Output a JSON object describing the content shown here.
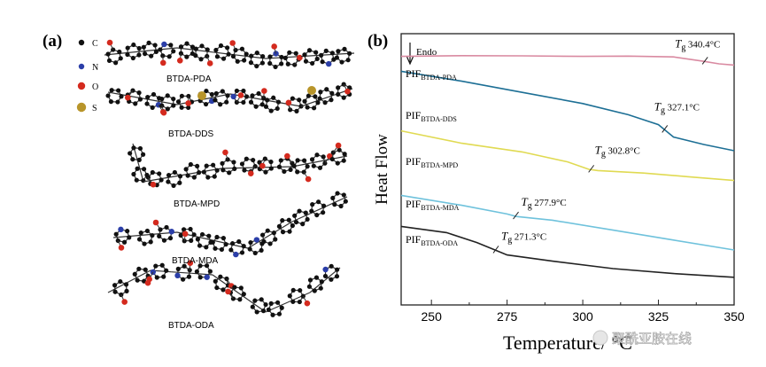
{
  "panel_a": {
    "label": "(a)",
    "legend": [
      {
        "symbol": "C",
        "color": "#111111"
      },
      {
        "symbol": "N",
        "color": "#2b3ea8"
      },
      {
        "symbol": "O",
        "color": "#d42a1e"
      },
      {
        "symbol": "S",
        "color": "#b8952a"
      }
    ],
    "molecules": [
      "BTDA-PDA",
      "BTDA-DDS",
      "BTDA-MPD",
      "BTDA-MDA",
      "BTDA-ODA"
    ]
  },
  "panel_b": {
    "label": "(b)",
    "endo_label": "Endo",
    "watermark": "聚酰亚胺在线"
  },
  "chart_data": {
    "type": "line",
    "title": "",
    "xlabel": "Temperature/ °C",
    "ylabel": "Heat Flow",
    "xlim": [
      240,
      350
    ],
    "xticks": [
      250,
      275,
      300,
      325,
      350
    ],
    "grid": false,
    "series": [
      {
        "name": "PDA",
        "label_main": "PIF",
        "label_sub": "BTDA-PDA",
        "color": "#d98aa1",
        "tg_label": "340.4°C",
        "x": [
          240,
          260,
          280,
          300,
          315,
          330,
          340,
          345,
          350
        ],
        "y": [
          4.55,
          4.58,
          4.57,
          4.55,
          4.56,
          4.53,
          4.35,
          4.25,
          4.2
        ]
      },
      {
        "name": "DDS",
        "label_main": "PIF",
        "label_sub": "BTDA-DDS",
        "color": "#1d6f95",
        "tg_label": "327.1°C",
        "x": [
          240,
          260,
          280,
          300,
          315,
          325,
          330,
          340,
          350
        ],
        "y": [
          3.95,
          3.55,
          3.1,
          2.65,
          2.2,
          1.8,
          1.3,
          1.0,
          0.75
        ]
      },
      {
        "name": "MPD",
        "label_main": "PIF",
        "label_sub": "BTDA-MPD",
        "color": "#e0da52",
        "tg_label": "302.8°C",
        "x": [
          240,
          260,
          280,
          295,
          302,
          305,
          320,
          335,
          350
        ],
        "y": [
          1.55,
          1.05,
          0.7,
          0.3,
          0.0,
          -0.05,
          -0.15,
          -0.3,
          -0.45
        ]
      },
      {
        "name": "MDA",
        "label_main": "PIF",
        "label_sub": "BTDA-MDA",
        "color": "#6fc2dc",
        "tg_label": "277.9°C",
        "x": [
          240,
          260,
          275,
          278,
          290,
          310,
          330,
          350
        ],
        "y": [
          -1.05,
          -1.45,
          -1.8,
          -1.9,
          -2.05,
          -2.45,
          -2.85,
          -3.25
        ]
      },
      {
        "name": "ODA",
        "label_main": "PIF",
        "label_sub": "BTDA-ODA",
        "color": "#222222",
        "tg_label": "271.3°C",
        "x": [
          240,
          255,
          265,
          271,
          275,
          290,
          310,
          330,
          350
        ],
        "y": [
          -2.3,
          -2.55,
          -2.95,
          -3.25,
          -3.45,
          -3.7,
          -4.0,
          -4.2,
          -4.35
        ]
      }
    ],
    "tg_points": [
      {
        "series": "PDA",
        "x": 340.4
      },
      {
        "series": "DDS",
        "x": 327.1
      },
      {
        "series": "MPD",
        "x": 302.8
      },
      {
        "series": "MDA",
        "x": 277.9
      },
      {
        "series": "ODA",
        "x": 271.3
      }
    ]
  }
}
